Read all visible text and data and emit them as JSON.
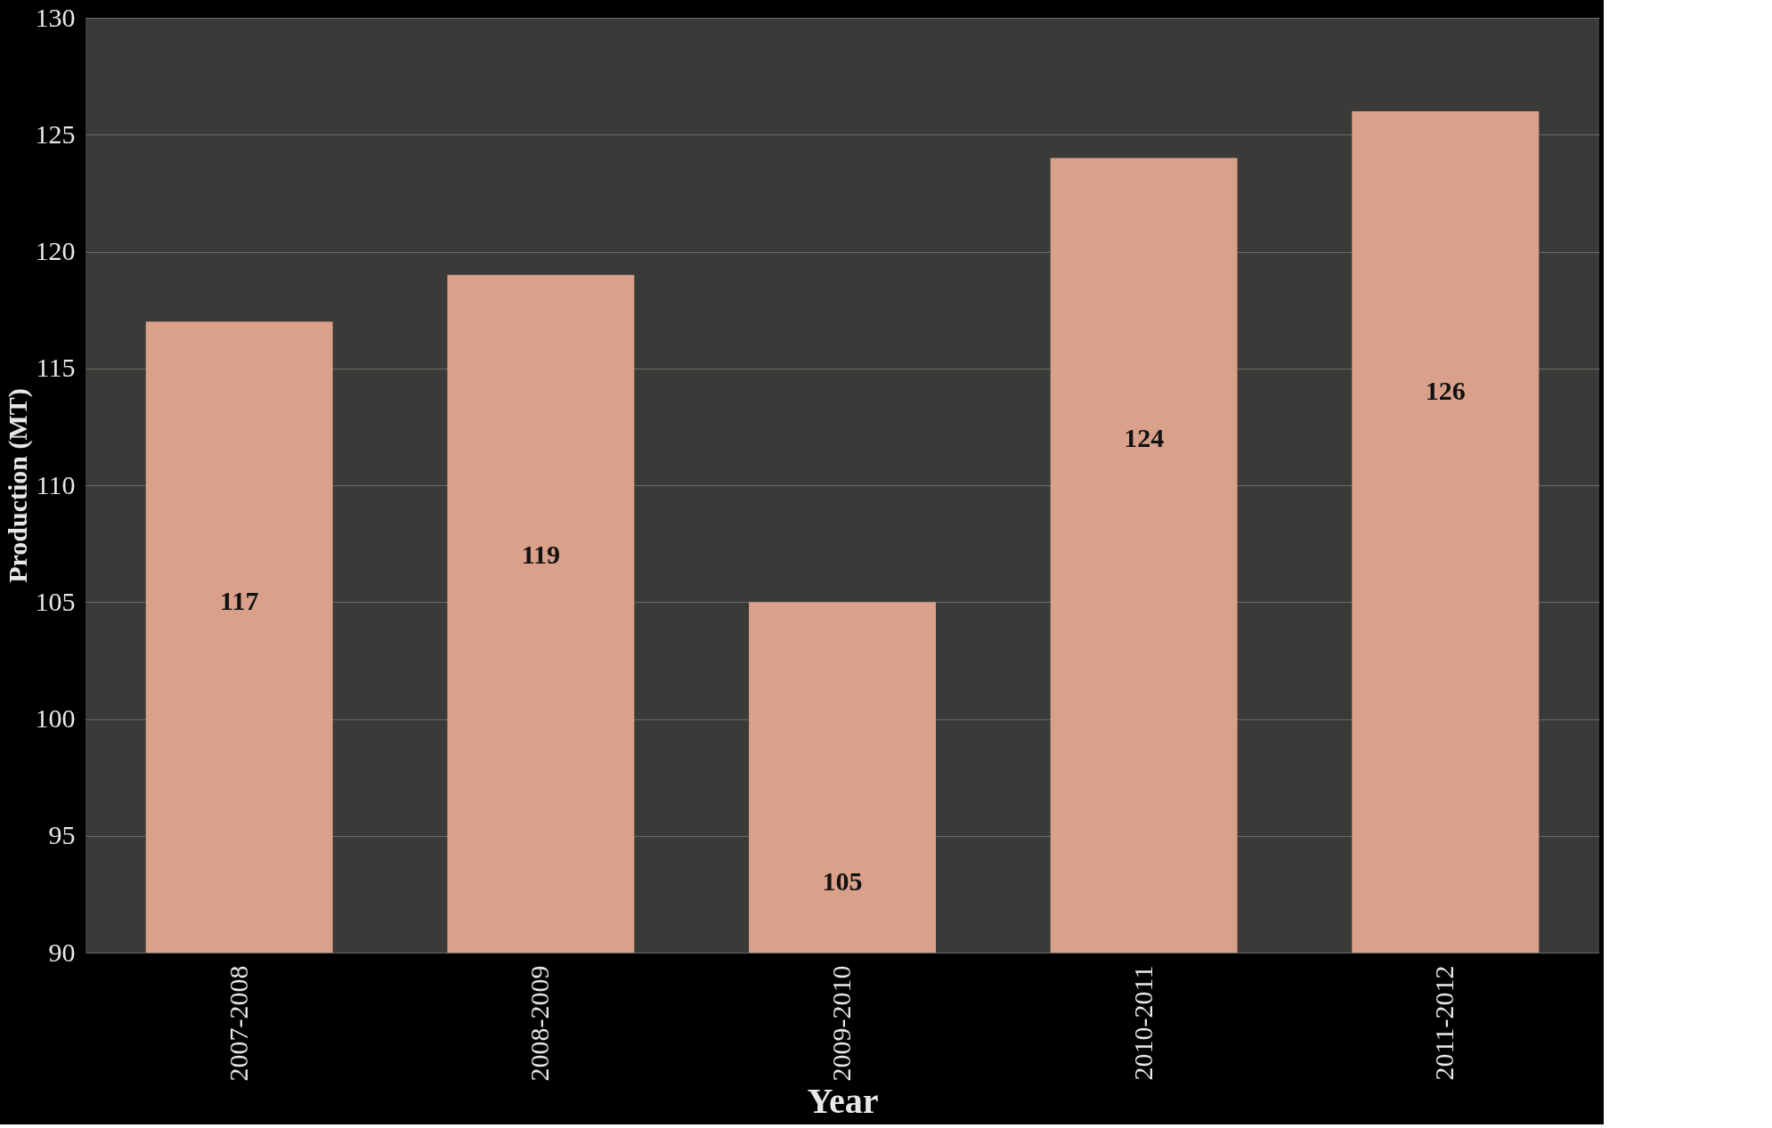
{
  "chart_data": {
    "type": "bar",
    "xlabel": "Year",
    "ylabel": "Production (MT)",
    "categories": [
      "2007-2008",
      "2008-2009",
      "2009-2010",
      "2010-2011",
      "2011-2012"
    ],
    "values": [
      117,
      119,
      105,
      124,
      126
    ],
    "color": "#d9a08a",
    "ylim": [
      90,
      130
    ],
    "yticks": [
      90,
      95,
      100,
      105,
      110,
      115,
      120,
      125,
      130
    ],
    "grid": "y",
    "data_labels": true
  }
}
